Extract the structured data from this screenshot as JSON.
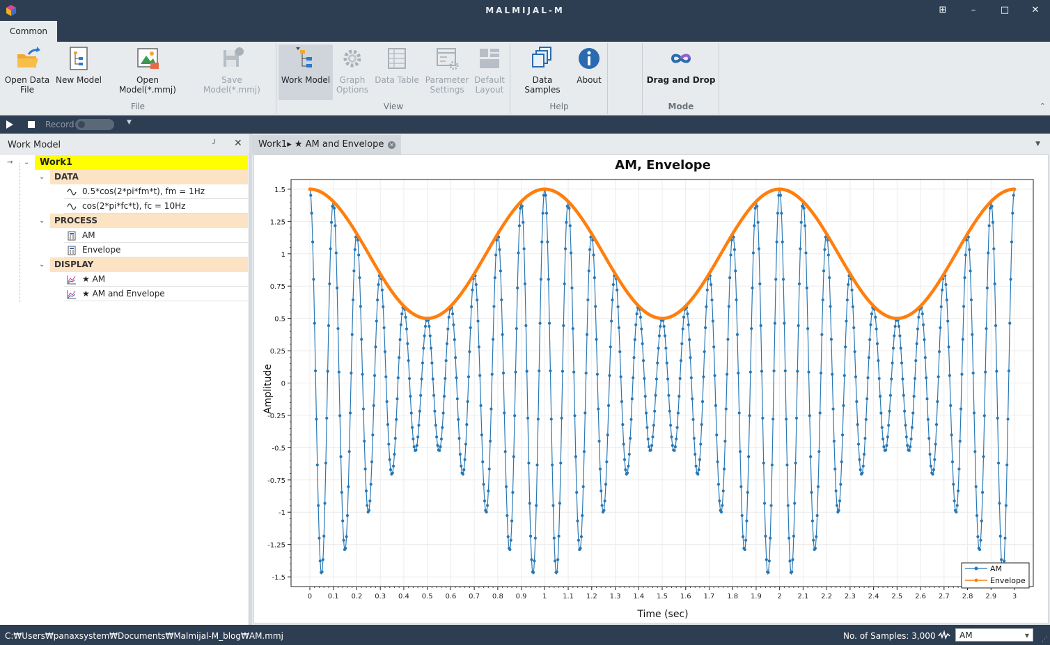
{
  "window": {
    "title": "MALMIJAL-M",
    "controls": [
      "restore-icon",
      "minimize-icon",
      "maximize-icon",
      "close-icon"
    ]
  },
  "ribbon": {
    "tab": "Common",
    "file": {
      "label": "File",
      "open_data_l1": "Open Data",
      "open_data_l2": "File",
      "new_model": "New Model",
      "open_model": "Open Model(*.mmj)",
      "save_model": "Save Model(*.mmj)"
    },
    "view": {
      "label": "View",
      "work_model": "Work Model",
      "graph_l1": "Graph",
      "graph_l2": "Options",
      "data_table": "Data Table",
      "param_l1": "Parameter",
      "param_l2": "Settings",
      "default_l1": "Default",
      "default_l2": "Layout"
    },
    "help": {
      "label": "Help",
      "data_samples": "Data Samples",
      "about": "About"
    },
    "mode": {
      "label": "Mode",
      "drag_drop": "Drag and Drop"
    }
  },
  "recordbar": {
    "record_label": "Record"
  },
  "work_model": {
    "title": "Work Model",
    "root": "Work1",
    "groups": [
      {
        "label": "DATA",
        "items": [
          "0.5*cos(2*pi*fm*t), fm = 1Hz",
          "cos(2*pi*fc*t), fc = 10Hz"
        ]
      },
      {
        "label": "PROCESS",
        "items": [
          "AM",
          "Envelope"
        ]
      },
      {
        "label": "DISPLAY",
        "items": [
          "★ AM",
          "★ AM and Envelope"
        ]
      }
    ]
  },
  "document": {
    "tab_label": "Work1▸ ★ AM and Envelope"
  },
  "chart_data": {
    "type": "line",
    "title": "AM, Envelope",
    "xlabel": "Time (sec)",
    "ylabel": "Amplitude",
    "xlim": [
      0,
      3
    ],
    "ylim": [
      -1.5,
      1.5
    ],
    "x_ticks": [
      "0",
      "0.1",
      "0.2",
      "0.3",
      "0.4",
      "0.5",
      "0.6",
      "0.7",
      "0.8",
      "0.9",
      "1",
      "1.1",
      "1.2",
      "1.3",
      "1.4",
      "1.5",
      "1.6",
      "1.7",
      "1.8",
      "1.9",
      "2",
      "2.1",
      "2.2",
      "2.3",
      "2.4",
      "2.5",
      "2.6",
      "2.7",
      "2.8",
      "2.9",
      "3"
    ],
    "y_ticks": [
      "1.5",
      "1.25",
      "1",
      "0.75",
      "0.5",
      "0.25",
      "0",
      "-0.25",
      "-0.5",
      "-0.75",
      "-1",
      "-1.25",
      "-1.5"
    ],
    "grid": true,
    "legend": "bottom-right",
    "series": [
      {
        "name": "AM",
        "formula": "(1 + 0.5*cos(2*pi*1*t)) * cos(2*pi*10*t)",
        "samples": 3000,
        "color": "#2878b5",
        "marker": "dot"
      },
      {
        "name": "Envelope",
        "formula": "1 + 0.5*cos(2*pi*1*t)",
        "samples": 3000,
        "color": "#ff7f0e",
        "marker": "dot"
      }
    ]
  },
  "status": {
    "path": "C:₩Users₩panaxsystem₩Documents₩Malmijal-M_blog₩AM.mmj",
    "samples": "No. of Samples: 3,000",
    "selected_display": "AM"
  },
  "colors": {
    "titlebar": "#2e3e52",
    "ribbon": "#e8ebee",
    "root_highlight": "#ffff00",
    "group_highlight": "#fce3c4",
    "am": "#2878b5",
    "envelope": "#ff7f0e"
  }
}
